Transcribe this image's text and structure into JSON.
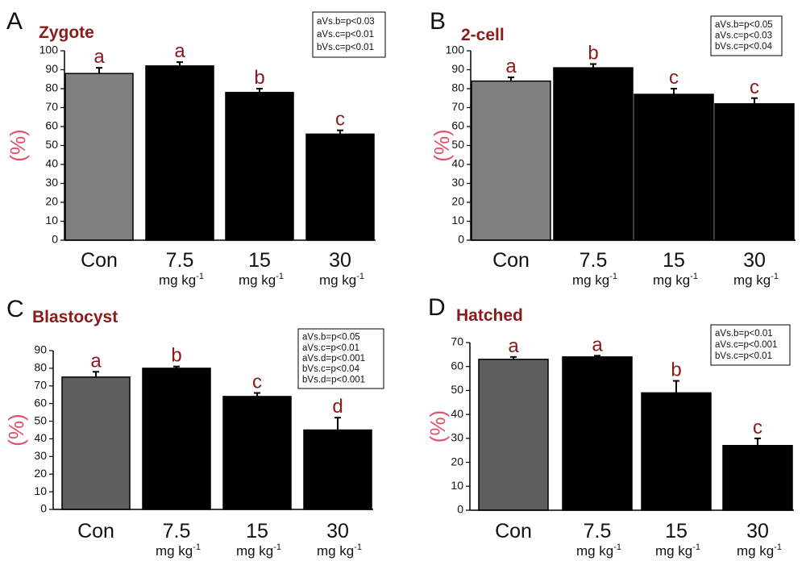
{
  "chart_data": [
    {
      "type": "bar",
      "panel": "A",
      "title": "Zygote",
      "ylabel": "(%)",
      "ylim": [
        0,
        100
      ],
      "yticks": [
        0,
        10,
        20,
        30,
        40,
        50,
        60,
        70,
        80,
        90,
        100
      ],
      "categories": [
        {
          "label": "Con",
          "unit": ""
        },
        {
          "label": "7.5",
          "unit": "mg kg",
          "unit_sup": "-1"
        },
        {
          "label": "15",
          "unit": "mg kg",
          "unit_sup": "-1"
        },
        {
          "label": "30",
          "unit": "mg kg",
          "unit_sup": "-1"
        }
      ],
      "values": [
        88,
        92,
        78,
        56
      ],
      "errors": [
        3,
        2,
        2,
        2
      ],
      "sig_letters": [
        "a",
        "a",
        "b",
        "c"
      ],
      "bar_colors": [
        "#808080",
        "#000000",
        "#000000",
        "#000000"
      ],
      "stats": [
        "aVs.b=p<0.03",
        "aVs.c=p<0.01",
        "bVs.c=p<0.01"
      ]
    },
    {
      "type": "bar",
      "panel": "B",
      "title": "2-cell",
      "ylabel": "(%)",
      "ylim": [
        0,
        100
      ],
      "yticks": [
        0,
        10,
        20,
        30,
        40,
        50,
        60,
        70,
        80,
        90,
        100
      ],
      "categories": [
        {
          "label": "Con",
          "unit": ""
        },
        {
          "label": "7.5",
          "unit": "mg kg",
          "unit_sup": "-1"
        },
        {
          "label": "15",
          "unit": "mg kg",
          "unit_sup": "-1"
        },
        {
          "label": "30",
          "unit": "mg kg",
          "unit_sup": "-1"
        }
      ],
      "values": [
        84,
        91,
        77,
        72
      ],
      "errors": [
        2,
        2,
        3,
        3
      ],
      "sig_letters": [
        "a",
        "b",
        "c",
        "c"
      ],
      "bar_colors": [
        "#808080",
        "#000000",
        "#000000",
        "#000000"
      ],
      "stats": [
        "aVs.b=p<0.05",
        "aVs.c=p<0.03",
        "bVs.c=p<0.04"
      ]
    },
    {
      "type": "bar",
      "panel": "C",
      "title": "Blastocyst",
      "ylabel": "(%)",
      "ylim": [
        0,
        90
      ],
      "yticks": [
        0,
        10,
        20,
        30,
        40,
        50,
        60,
        70,
        80,
        90
      ],
      "categories": [
        {
          "label": "Con",
          "unit": ""
        },
        {
          "label": "7.5",
          "unit": "mg kg",
          "unit_sup": "-1"
        },
        {
          "label": "15",
          "unit": "mg kg",
          "unit_sup": "-1"
        },
        {
          "label": "30",
          "unit": "mg kg",
          "unit_sup": "-1"
        }
      ],
      "values": [
        75,
        80,
        64,
        45
      ],
      "errors": [
        3,
        1,
        2,
        7
      ],
      "sig_letters": [
        "a",
        "b",
        "c",
        "d"
      ],
      "bar_colors": [
        "#5e5e5e",
        "#000000",
        "#000000",
        "#000000"
      ],
      "stats": [
        "aVs.b=p<0.05",
        "aVs.c=p<0.01",
        "aVs.d=p<0.001",
        "bVs.c=p<0.04",
        "bVs.d=p<0.001"
      ]
    },
    {
      "type": "bar",
      "panel": "D",
      "title": "Hatched",
      "ylabel": "(%)",
      "ylim": [
        0,
        70
      ],
      "yticks": [
        0,
        10,
        20,
        30,
        40,
        50,
        60,
        70
      ],
      "categories": [
        {
          "label": "Con",
          "unit": ""
        },
        {
          "label": "7.5",
          "unit": "mg kg",
          "unit_sup": "-1"
        },
        {
          "label": "15",
          "unit": "mg kg",
          "unit_sup": "-1"
        },
        {
          "label": "30",
          "unit": "mg kg",
          "unit_sup": "-1"
        }
      ],
      "values": [
        63,
        64,
        49,
        27
      ],
      "errors": [
        1,
        0.5,
        5,
        3
      ],
      "sig_letters": [
        "a",
        "a",
        "b",
        "c"
      ],
      "bar_colors": [
        "#5e5e5e",
        "#000000",
        "#000000",
        "#000000"
      ],
      "stats": [
        "aVs.b=p<0.01",
        "aVs.c=p<0.001",
        "bVs.c=p<0.01"
      ]
    }
  ]
}
